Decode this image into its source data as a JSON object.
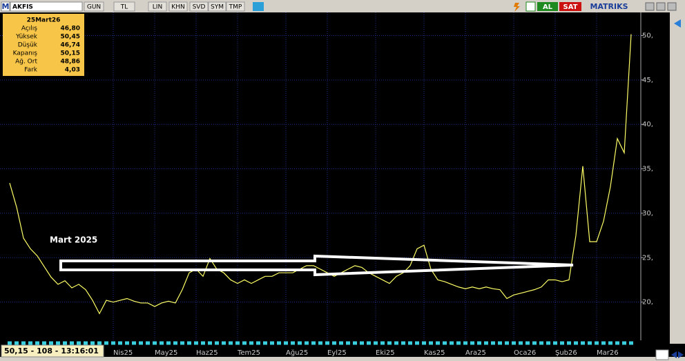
{
  "toolbar": {
    "logo": "M",
    "symbol": "AKFIS",
    "buttons": [
      "GUN",
      "TL",
      "LIN",
      "KHN",
      "SVD",
      "SYM",
      "TMP"
    ],
    "buy": "AL",
    "sell": "SAT",
    "brand": "MATRIKS"
  },
  "info_box": {
    "date": "25Mart26",
    "rows": [
      [
        "Açılış",
        "46,80"
      ],
      [
        "Yüksek",
        "50,45"
      ],
      [
        "Düşük",
        "46,74"
      ],
      [
        "Kapanış",
        "50,15"
      ],
      [
        "Ağ. Ort",
        "48,86"
      ],
      [
        "Fark",
        "4,03"
      ]
    ]
  },
  "status": "50,15 - 108 - 13:16:01",
  "chart_data": {
    "type": "line",
    "annotation": "Mart 2025",
    "categories": [
      null,
      null,
      null,
      null,
      null,
      null,
      null,
      null,
      null,
      null,
      null,
      null,
      null,
      null,
      null,
      "Nis25",
      null,
      null,
      null,
      null,
      null,
      "May25",
      null,
      null,
      null,
      null,
      null,
      "Haz25",
      null,
      null,
      null,
      null,
      null,
      "Tem25",
      null,
      null,
      null,
      null,
      null,
      null,
      "Ağu25",
      null,
      null,
      null,
      null,
      null,
      "Eyl25",
      null,
      null,
      null,
      null,
      null,
      null,
      "Eki25",
      null,
      null,
      null,
      null,
      null,
      null,
      "Kas25",
      null,
      null,
      null,
      null,
      null,
      "Ara25",
      null,
      null,
      null,
      null,
      null,
      null,
      "Oca26",
      null,
      null,
      null,
      null,
      null,
      "Şub26",
      null,
      null,
      null,
      null,
      null,
      "Mar26",
      null,
      null,
      null,
      null,
      null
    ],
    "series": [
      {
        "name": "AKFIS",
        "color": "#ffff66",
        "values": [
          33.4,
          30.7,
          27.2,
          26,
          25.2,
          24,
          22.8,
          22,
          22.4,
          21.6,
          22,
          21.4,
          20.2,
          18.7,
          20.2,
          20,
          20.2,
          20.4,
          20.1,
          19.9,
          19.9,
          19.5,
          19.9,
          20.1,
          19.9,
          21.4,
          23.3,
          23.7,
          22.9,
          24.9,
          23.7,
          23.3,
          22.5,
          22.1,
          22.5,
          22.1,
          22.5,
          22.9,
          22.9,
          23.3,
          23.3,
          23.3,
          23.7,
          24.1,
          24.1,
          23.7,
          23.3,
          22.9,
          23.3,
          23.7,
          24.1,
          23.9,
          23.3,
          22.9,
          22.5,
          22.1,
          22.9,
          23.3,
          24.1,
          26,
          26.4,
          23.7,
          22.5,
          22.3,
          22,
          21.7,
          21.5,
          21.7,
          21.5,
          21.7,
          21.5,
          21.4,
          20.4,
          20.8,
          21,
          21.2,
          21.4,
          21.7,
          22.5,
          22.5,
          22.3,
          22.5,
          27.5,
          35.3,
          26.8,
          26.8,
          29.1,
          33,
          38.4,
          36.8,
          50.15
        ]
      }
    ],
    "ylim": [
      15.7,
      52.6
    ],
    "yticks": [
      {
        "value": 20,
        "label": "20,"
      },
      {
        "value": 25,
        "label": "25,"
      },
      {
        "value": 30,
        "label": "30,"
      },
      {
        "value": 35,
        "label": "35,"
      },
      {
        "value": 40,
        "label": "40,"
      },
      {
        "value": 45,
        "label": "45,"
      },
      {
        "value": 50,
        "label": "50,"
      }
    ],
    "grid": true
  }
}
